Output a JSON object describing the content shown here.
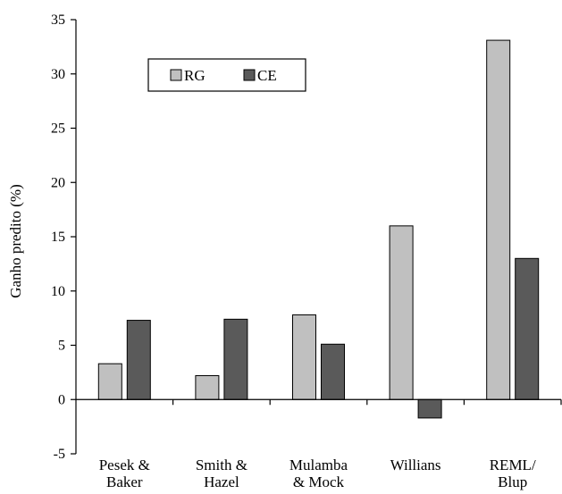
{
  "chart_data": {
    "type": "bar",
    "title": "",
    "xlabel": "",
    "ylabel": "Ganho predito (%)",
    "ylim": [
      -5,
      35
    ],
    "yticks": [
      -5,
      0,
      5,
      10,
      15,
      20,
      25,
      30,
      35
    ],
    "grid": false,
    "legend_position": "top-left",
    "categories": [
      [
        "Pesek &",
        "Baker"
      ],
      [
        "Smith &",
        "Hazel"
      ],
      [
        "Mulamba",
        "& Mock"
      ],
      [
        "Willians"
      ],
      [
        "REML/",
        "Blup"
      ]
    ],
    "series": [
      {
        "name": "RG",
        "color": "#c0c0c0",
        "values": [
          3.3,
          2.2,
          7.8,
          16.0,
          33.1
        ]
      },
      {
        "name": "CE",
        "color": "#5a5a5a",
        "values": [
          7.3,
          7.4,
          5.1,
          -1.7,
          13.0
        ]
      }
    ]
  }
}
